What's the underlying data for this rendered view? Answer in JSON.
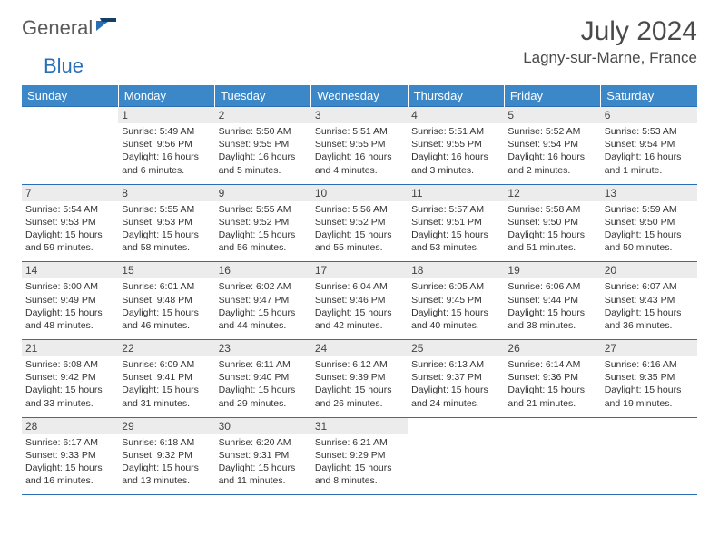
{
  "logo": {
    "part1": "General",
    "part2": "Blue"
  },
  "title": "July 2024",
  "location": "Lagny-sur-Marne, France",
  "colors": {
    "headerBlue": "#3b87c8",
    "ruleBlue": "#2a6fb5",
    "dayBg": "#ececec",
    "text": "#333333",
    "logoGray": "#5a5a5a",
    "logoBlue": "#2a6fb5"
  },
  "weekdays": [
    "Sunday",
    "Monday",
    "Tuesday",
    "Wednesday",
    "Thursday",
    "Friday",
    "Saturday"
  ],
  "weeks": [
    [
      null,
      {
        "n": "1",
        "sr": "5:49 AM",
        "ss": "9:56 PM",
        "dl": "16 hours and 6 minutes."
      },
      {
        "n": "2",
        "sr": "5:50 AM",
        "ss": "9:55 PM",
        "dl": "16 hours and 5 minutes."
      },
      {
        "n": "3",
        "sr": "5:51 AM",
        "ss": "9:55 PM",
        "dl": "16 hours and 4 minutes."
      },
      {
        "n": "4",
        "sr": "5:51 AM",
        "ss": "9:55 PM",
        "dl": "16 hours and 3 minutes."
      },
      {
        "n": "5",
        "sr": "5:52 AM",
        "ss": "9:54 PM",
        "dl": "16 hours and 2 minutes."
      },
      {
        "n": "6",
        "sr": "5:53 AM",
        "ss": "9:54 PM",
        "dl": "16 hours and 1 minute."
      }
    ],
    [
      {
        "n": "7",
        "sr": "5:54 AM",
        "ss": "9:53 PM",
        "dl": "15 hours and 59 minutes."
      },
      {
        "n": "8",
        "sr": "5:55 AM",
        "ss": "9:53 PM",
        "dl": "15 hours and 58 minutes."
      },
      {
        "n": "9",
        "sr": "5:55 AM",
        "ss": "9:52 PM",
        "dl": "15 hours and 56 minutes."
      },
      {
        "n": "10",
        "sr": "5:56 AM",
        "ss": "9:52 PM",
        "dl": "15 hours and 55 minutes."
      },
      {
        "n": "11",
        "sr": "5:57 AM",
        "ss": "9:51 PM",
        "dl": "15 hours and 53 minutes."
      },
      {
        "n": "12",
        "sr": "5:58 AM",
        "ss": "9:50 PM",
        "dl": "15 hours and 51 minutes."
      },
      {
        "n": "13",
        "sr": "5:59 AM",
        "ss": "9:50 PM",
        "dl": "15 hours and 50 minutes."
      }
    ],
    [
      {
        "n": "14",
        "sr": "6:00 AM",
        "ss": "9:49 PM",
        "dl": "15 hours and 48 minutes."
      },
      {
        "n": "15",
        "sr": "6:01 AM",
        "ss": "9:48 PM",
        "dl": "15 hours and 46 minutes."
      },
      {
        "n": "16",
        "sr": "6:02 AM",
        "ss": "9:47 PM",
        "dl": "15 hours and 44 minutes."
      },
      {
        "n": "17",
        "sr": "6:04 AM",
        "ss": "9:46 PM",
        "dl": "15 hours and 42 minutes."
      },
      {
        "n": "18",
        "sr": "6:05 AM",
        "ss": "9:45 PM",
        "dl": "15 hours and 40 minutes."
      },
      {
        "n": "19",
        "sr": "6:06 AM",
        "ss": "9:44 PM",
        "dl": "15 hours and 38 minutes."
      },
      {
        "n": "20",
        "sr": "6:07 AM",
        "ss": "9:43 PM",
        "dl": "15 hours and 36 minutes."
      }
    ],
    [
      {
        "n": "21",
        "sr": "6:08 AM",
        "ss": "9:42 PM",
        "dl": "15 hours and 33 minutes."
      },
      {
        "n": "22",
        "sr": "6:09 AM",
        "ss": "9:41 PM",
        "dl": "15 hours and 31 minutes."
      },
      {
        "n": "23",
        "sr": "6:11 AM",
        "ss": "9:40 PM",
        "dl": "15 hours and 29 minutes."
      },
      {
        "n": "24",
        "sr": "6:12 AM",
        "ss": "9:39 PM",
        "dl": "15 hours and 26 minutes."
      },
      {
        "n": "25",
        "sr": "6:13 AM",
        "ss": "9:37 PM",
        "dl": "15 hours and 24 minutes."
      },
      {
        "n": "26",
        "sr": "6:14 AM",
        "ss": "9:36 PM",
        "dl": "15 hours and 21 minutes."
      },
      {
        "n": "27",
        "sr": "6:16 AM",
        "ss": "9:35 PM",
        "dl": "15 hours and 19 minutes."
      }
    ],
    [
      {
        "n": "28",
        "sr": "6:17 AM",
        "ss": "9:33 PM",
        "dl": "15 hours and 16 minutes."
      },
      {
        "n": "29",
        "sr": "6:18 AM",
        "ss": "9:32 PM",
        "dl": "15 hours and 13 minutes."
      },
      {
        "n": "30",
        "sr": "6:20 AM",
        "ss": "9:31 PM",
        "dl": "15 hours and 11 minutes."
      },
      {
        "n": "31",
        "sr": "6:21 AM",
        "ss": "9:29 PM",
        "dl": "15 hours and 8 minutes."
      },
      null,
      null,
      null
    ]
  ],
  "labels": {
    "sunrise": "Sunrise:",
    "sunset": "Sunset:",
    "daylight": "Daylight:"
  }
}
